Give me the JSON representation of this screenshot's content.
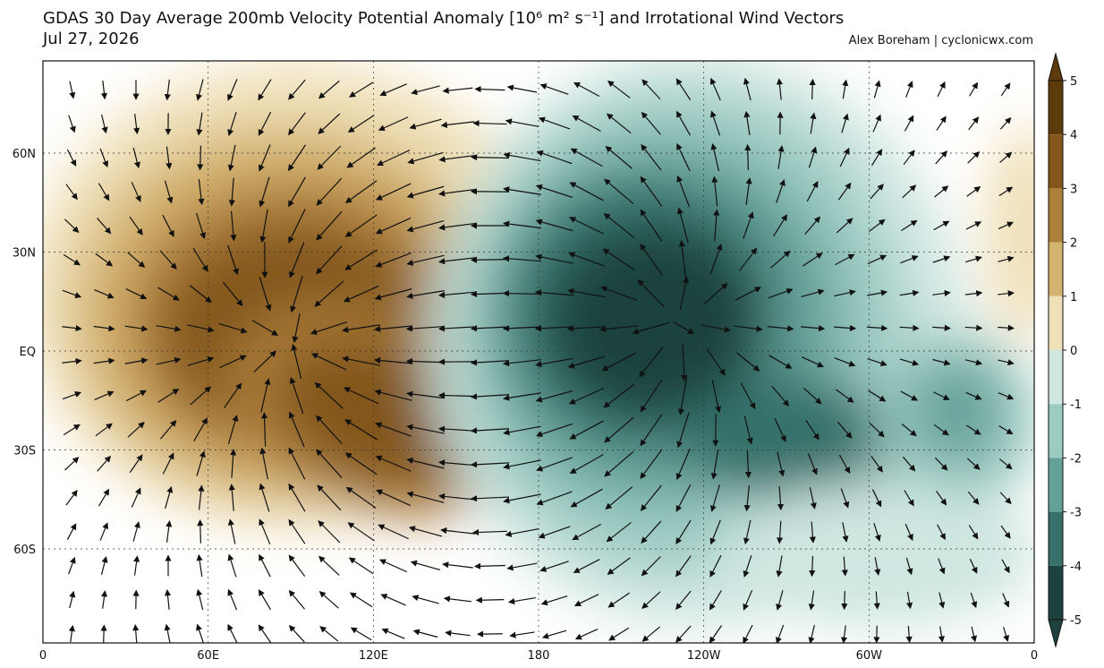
{
  "header": {
    "title": "GDAS 30 Day Average 200mb Velocity Potential Anomaly [10⁶ m² s⁻¹] and Irrotational Wind Vectors",
    "date": "Jul 27, 2026",
    "credit": "Alex Boreham | cyclonicwx.com"
  },
  "map": {
    "lat_labels": [
      "60N",
      "30N",
      "EQ",
      "30S",
      "60S"
    ],
    "lon_labels": [
      "0",
      "60E",
      "120E",
      "180",
      "120W",
      "60W",
      "0"
    ]
  },
  "colorbar": {
    "ticks": [
      5,
      4,
      3,
      2,
      1,
      0,
      -1,
      -2,
      -3,
      -4,
      -5
    ],
    "colors": [
      "#5c3a0a",
      "#83561c",
      "#ad7f3a",
      "#d4b270",
      "#efe0b8",
      "#ffffff",
      "#cfe6e1",
      "#9ccbc2",
      "#65a199",
      "#36716b",
      "#1e433e"
    ]
  }
}
